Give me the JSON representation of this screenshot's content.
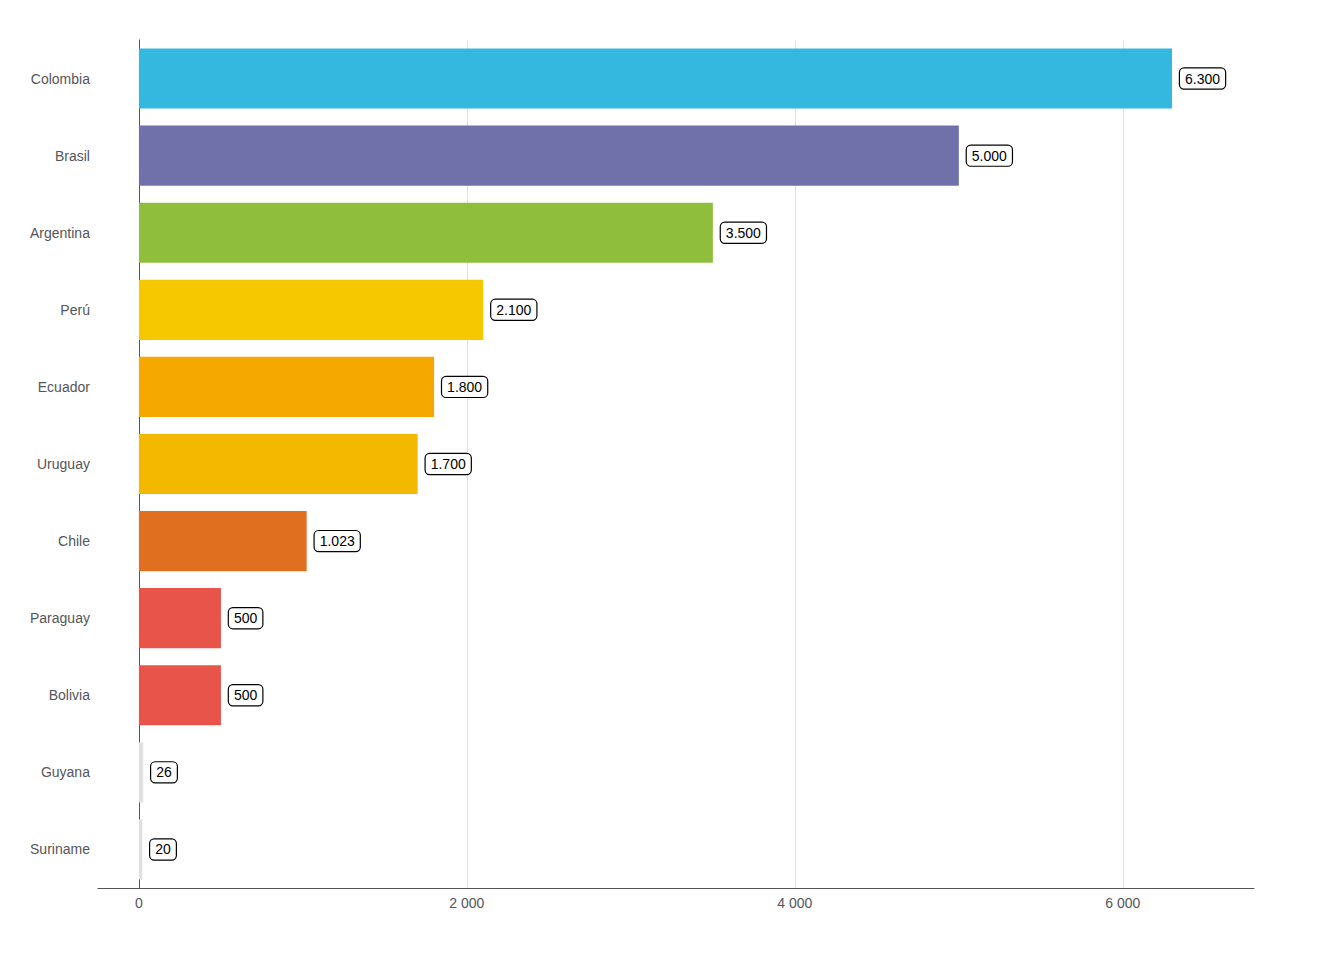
{
  "chart_data": {
    "type": "bar",
    "orientation": "horizontal",
    "categories": [
      "Suriname",
      "Guyana",
      "Bolivia",
      "Paraguay",
      "Chile",
      "Uruguay",
      "Ecuador",
      "Perú",
      "Argentina",
      "Brasil",
      "Colombia"
    ],
    "values": [
      20,
      26,
      500,
      500,
      1023,
      1700,
      1800,
      2100,
      3500,
      5000,
      6300
    ],
    "value_labels": [
      "20",
      "26",
      "500",
      "500",
      "1.023",
      "1.700",
      "1.800",
      "2.100",
      "3.500",
      "5.000",
      "6.300"
    ],
    "colors": [
      "#e0e0e0",
      "#e0e0e0",
      "#e8534a",
      "#e8534a",
      "#e07020",
      "#f5b800",
      "#f5a800",
      "#f5c800",
      "#8fbe3c",
      "#7070aa",
      "#35b8e0"
    ],
    "xlim": [
      -250,
      6800
    ],
    "xticks": [
      0,
      {
        "value": 2000,
        "label": "2 000"
      },
      {
        "value": 4000,
        "label": "4 000"
      },
      {
        "value": 6000,
        "label": "6 000"
      }
    ],
    "grid": true,
    "data_labels": true
  }
}
